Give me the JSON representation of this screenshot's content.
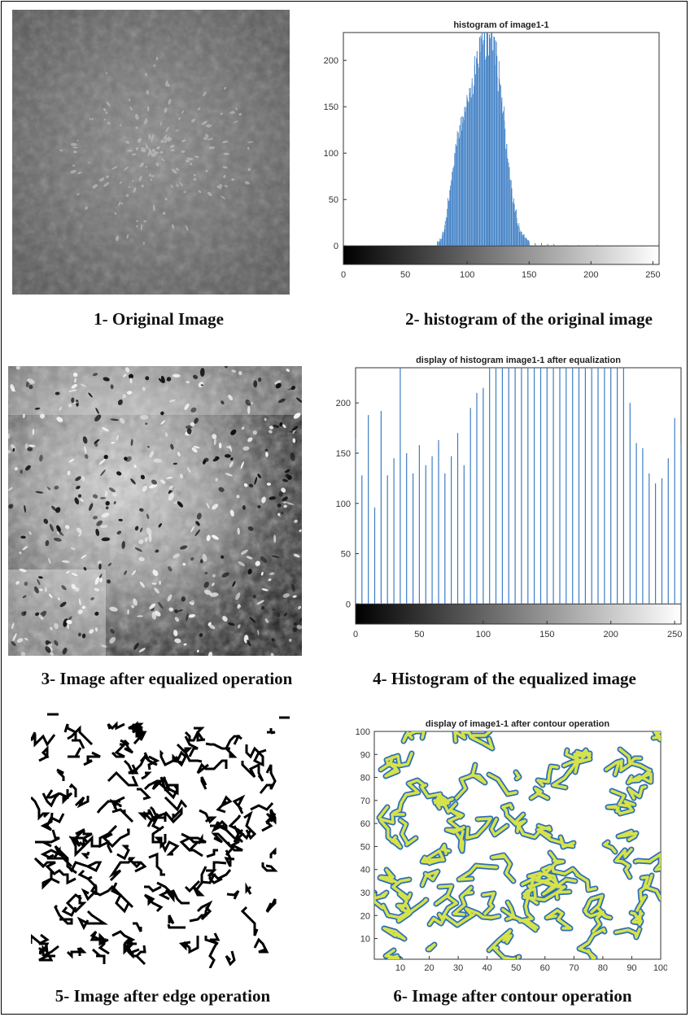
{
  "panels": [
    {
      "id": 1,
      "caption": "1-   Original Image"
    },
    {
      "id": 2,
      "caption": "2- histogram of the original image"
    },
    {
      "id": 3,
      "caption": "3- Image after equalized operation"
    },
    {
      "id": 4,
      "caption": "4- Histogram of the equalized image"
    },
    {
      "id": 5,
      "caption": "5- Image after edge operation"
    },
    {
      "id": 6,
      "caption": "6- Image after contour operation"
    }
  ],
  "colors": {
    "bar": "#3c7dc4",
    "contour_outer": "#2e6fb6",
    "contour_inner": "#d6e24a",
    "frame": "#000000"
  },
  "chart_data": [
    {
      "type": "bar",
      "title": "histogram of image1-1",
      "xlim": [
        0,
        255
      ],
      "ylim": [
        -20,
        230
      ],
      "xticks": [
        0,
        50,
        100,
        150,
        200,
        250
      ],
      "yticks": [
        0,
        50,
        100,
        150,
        200
      ],
      "colorbar": "grayscale 0-255 below axis",
      "x": [
        78,
        80,
        82,
        84,
        86,
        88,
        90,
        92,
        94,
        96,
        98,
        100,
        102,
        104,
        106,
        108,
        110,
        112,
        114,
        116,
        118,
        120,
        122,
        124,
        126,
        128,
        130,
        132,
        134,
        136,
        138,
        140,
        142,
        144,
        146,
        148,
        150,
        155,
        160,
        165,
        170,
        180,
        190,
        205
      ],
      "values": [
        5,
        12,
        22,
        40,
        60,
        80,
        100,
        115,
        130,
        140,
        150,
        160,
        165,
        175,
        195,
        210,
        225,
        230,
        230,
        230,
        228,
        230,
        225,
        205,
        180,
        160,
        135,
        110,
        85,
        62,
        45,
        30,
        20,
        15,
        10,
        8,
        5,
        3,
        3,
        2,
        2,
        1,
        1,
        1
      ]
    },
    {
      "type": "bar",
      "title": "display of histogram image1-1 after equalization",
      "xlim": [
        0,
        255
      ],
      "ylim": [
        -20,
        235
      ],
      "xticks": [
        0,
        50,
        100,
        150,
        200,
        250
      ],
      "yticks": [
        0,
        50,
        100,
        150,
        200
      ],
      "colorbar": "grayscale 0-255 below axis",
      "x": [
        0,
        5,
        10,
        15,
        20,
        25,
        30,
        35,
        40,
        45,
        50,
        55,
        60,
        65,
        70,
        75,
        80,
        85,
        90,
        95,
        100,
        105,
        110,
        115,
        120,
        125,
        130,
        135,
        140,
        145,
        150,
        155,
        160,
        165,
        170,
        175,
        180,
        185,
        190,
        195,
        200,
        205,
        210,
        215,
        220,
        225,
        230,
        235,
        240,
        245,
        250,
        255
      ],
      "values": [
        165,
        128,
        188,
        96,
        192,
        128,
        145,
        235,
        150,
        130,
        158,
        138,
        147,
        163,
        130,
        147,
        170,
        138,
        195,
        210,
        215,
        235,
        235,
        235,
        235,
        235,
        235,
        235,
        235,
        235,
        235,
        235,
        235,
        235,
        235,
        235,
        235,
        235,
        235,
        235,
        235,
        235,
        235,
        200,
        160,
        155,
        130,
        120,
        125,
        145,
        185,
        160
      ]
    },
    {
      "type": "table",
      "title": "display of image1-1 after contour operation",
      "xlim": [
        1,
        100
      ],
      "ylim": [
        1,
        100
      ],
      "xticks": [
        10,
        20,
        30,
        40,
        50,
        60,
        70,
        80,
        90,
        100
      ],
      "yticks": [
        10,
        20,
        30,
        40,
        50,
        60,
        70,
        80,
        90,
        100
      ]
    }
  ]
}
